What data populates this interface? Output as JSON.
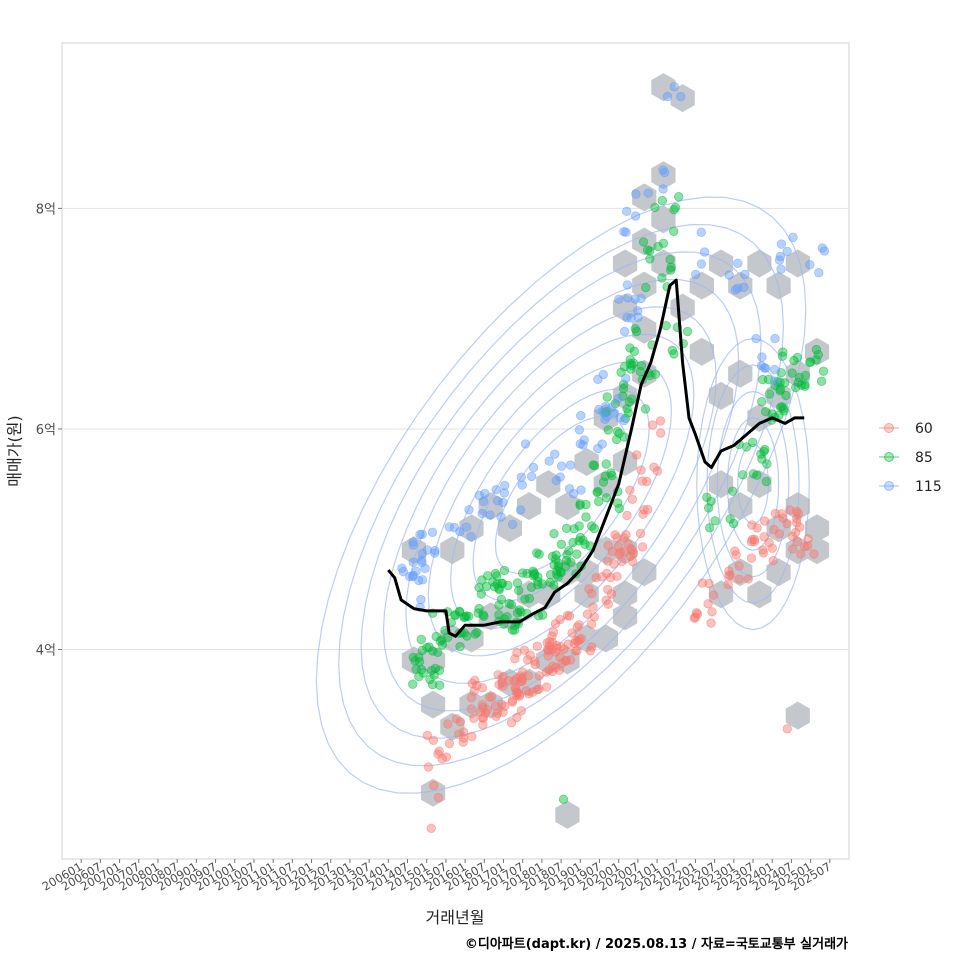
{
  "chart_data": {
    "type": "scatter",
    "title": "",
    "xlabel": "거래년월",
    "ylabel": "매매가(원)",
    "caption": "©디아파트(dapt.kr) / 2025.08.13 / 자료=국토교통부 실거래가",
    "x_ticks": [
      "200601",
      "200607",
      "200701",
      "200707",
      "200801",
      "200807",
      "200901",
      "200907",
      "201001",
      "201007",
      "201101",
      "201107",
      "201201",
      "201207",
      "201301",
      "201307",
      "201401",
      "201407",
      "201501",
      "201507",
      "201601",
      "201607",
      "201701",
      "201707",
      "201801",
      "201807",
      "201901",
      "201907",
      "202001",
      "202007",
      "202101",
      "202107",
      "202201",
      "202207",
      "202301",
      "202307",
      "202401",
      "202407",
      "202501",
      "202507"
    ],
    "x_range_months": [
      -6,
      240
    ],
    "ylim": [
      2.1,
      9.5
    ],
    "y_ticks": [
      {
        "value": 4,
        "label": "4억"
      },
      {
        "value": 6,
        "label": "6억"
      },
      {
        "value": 8,
        "label": "8억"
      }
    ],
    "legend": {
      "placement": "right",
      "entries": [
        {
          "name": "60",
          "color": "#F8766D"
        },
        {
          "name": "85",
          "color": "#00BA38"
        },
        {
          "name": "115",
          "color": "#619CFF"
        }
      ]
    },
    "series": [
      {
        "name": "60",
        "color": "#F8766D",
        "clusters": [
          {
            "month": 112,
            "price": 3.05,
            "count": 6
          },
          {
            "month": 118,
            "price": 3.35,
            "count": 10
          },
          {
            "month": 126,
            "price": 3.5,
            "count": 18
          },
          {
            "month": 134,
            "price": 3.55,
            "count": 22
          },
          {
            "month": 140,
            "price": 3.8,
            "count": 20
          },
          {
            "month": 146,
            "price": 3.85,
            "count": 18
          },
          {
            "month": 150,
            "price": 4.05,
            "count": 16
          },
          {
            "month": 156,
            "price": 4.2,
            "count": 14
          },
          {
            "month": 162,
            "price": 4.45,
            "count": 12
          },
          {
            "month": 168,
            "price": 4.85,
            "count": 14
          },
          {
            "month": 172,
            "price": 5.0,
            "count": 10
          },
          {
            "month": 176,
            "price": 5.45,
            "count": 8
          },
          {
            "month": 178,
            "price": 5.85,
            "count": 6
          },
          {
            "month": 196,
            "price": 4.4,
            "count": 10
          },
          {
            "month": 206,
            "price": 4.75,
            "count": 10
          },
          {
            "month": 214,
            "price": 5.0,
            "count": 14
          },
          {
            "month": 220,
            "price": 5.1,
            "count": 10
          },
          {
            "month": 226,
            "price": 5.05,
            "count": 10
          },
          {
            "month": 224,
            "price": 3.5,
            "count": 1
          },
          {
            "month": 108,
            "price": 2.6,
            "count": 2
          },
          {
            "month": 116,
            "price": 2.8,
            "count": 2
          }
        ]
      },
      {
        "name": "85",
        "color": "#00BA38",
        "clusters": [
          {
            "month": 108,
            "price": 3.9,
            "count": 24
          },
          {
            "month": 114,
            "price": 4.2,
            "count": 10
          },
          {
            "month": 122,
            "price": 4.3,
            "count": 14
          },
          {
            "month": 128,
            "price": 4.5,
            "count": 16
          },
          {
            "month": 134,
            "price": 4.4,
            "count": 18
          },
          {
            "month": 140,
            "price": 4.5,
            "count": 16
          },
          {
            "month": 146,
            "price": 4.75,
            "count": 16
          },
          {
            "month": 152,
            "price": 4.9,
            "count": 16
          },
          {
            "month": 158,
            "price": 5.1,
            "count": 12
          },
          {
            "month": 164,
            "price": 5.5,
            "count": 14
          },
          {
            "month": 168,
            "price": 6.1,
            "count": 14
          },
          {
            "month": 172,
            "price": 6.4,
            "count": 12
          },
          {
            "month": 176,
            "price": 6.7,
            "count": 10
          },
          {
            "month": 180,
            "price": 7.5,
            "count": 12
          },
          {
            "month": 183,
            "price": 7.9,
            "count": 6
          },
          {
            "month": 186,
            "price": 6.9,
            "count": 6
          },
          {
            "month": 150,
            "price": 2.5,
            "count": 1
          },
          {
            "month": 200,
            "price": 5.3,
            "count": 8
          },
          {
            "month": 210,
            "price": 5.7,
            "count": 12
          },
          {
            "month": 216,
            "price": 6.3,
            "count": 16
          },
          {
            "month": 222,
            "price": 6.5,
            "count": 14
          },
          {
            "month": 228,
            "price": 6.6,
            "count": 10
          }
        ]
      },
      {
        "name": "115",
        "color": "#619CFF",
        "clusters": [
          {
            "month": 104,
            "price": 4.85,
            "count": 14
          },
          {
            "month": 104,
            "price": 4.6,
            "count": 6
          },
          {
            "month": 114,
            "price": 5.0,
            "count": 6
          },
          {
            "month": 124,
            "price": 5.2,
            "count": 8
          },
          {
            "month": 134,
            "price": 5.3,
            "count": 8
          },
          {
            "month": 142,
            "price": 5.7,
            "count": 6
          },
          {
            "month": 152,
            "price": 5.6,
            "count": 8
          },
          {
            "month": 160,
            "price": 6.0,
            "count": 10
          },
          {
            "month": 166,
            "price": 6.3,
            "count": 10
          },
          {
            "month": 172,
            "price": 7.1,
            "count": 10
          },
          {
            "month": 174,
            "price": 8.0,
            "count": 6
          },
          {
            "month": 178,
            "price": 8.4,
            "count": 3
          },
          {
            "month": 184,
            "price": 9.1,
            "count": 3
          },
          {
            "month": 196,
            "price": 7.6,
            "count": 4
          },
          {
            "month": 206,
            "price": 7.4,
            "count": 6
          },
          {
            "month": 214,
            "price": 6.6,
            "count": 8
          },
          {
            "month": 222,
            "price": 7.6,
            "count": 6
          },
          {
            "month": 228,
            "price": 7.55,
            "count": 4
          }
        ]
      }
    ],
    "trend_line": {
      "color": "#000000",
      "points": [
        [
          96,
          4.72
        ],
        [
          98,
          4.65
        ],
        [
          100,
          4.45
        ],
        [
          104,
          4.37
        ],
        [
          108,
          4.35
        ],
        [
          114,
          4.35
        ],
        [
          115,
          4.15
        ],
        [
          117,
          4.12
        ],
        [
          120,
          4.22
        ],
        [
          126,
          4.22
        ],
        [
          131,
          4.25
        ],
        [
          137,
          4.25
        ],
        [
          141,
          4.32
        ],
        [
          145,
          4.38
        ],
        [
          148,
          4.52
        ],
        [
          152,
          4.6
        ],
        [
          156,
          4.72
        ],
        [
          160,
          4.9
        ],
        [
          164,
          5.2
        ],
        [
          168,
          5.5
        ],
        [
          172,
          6.0
        ],
        [
          175,
          6.4
        ],
        [
          178,
          6.6
        ],
        [
          181,
          6.9
        ],
        [
          184,
          7.3
        ],
        [
          186,
          7.35
        ],
        [
          188,
          6.6
        ],
        [
          190,
          6.1
        ],
        [
          192,
          5.95
        ],
        [
          195,
          5.7
        ],
        [
          197,
          5.65
        ],
        [
          200,
          5.8
        ],
        [
          204,
          5.85
        ],
        [
          208,
          5.95
        ],
        [
          212,
          6.05
        ],
        [
          216,
          6.1
        ],
        [
          220,
          6.05
        ],
        [
          223,
          6.1
        ],
        [
          226,
          6.1
        ]
      ]
    },
    "hexbin_centers": [
      [
        104,
        3.9
      ],
      [
        110,
        3.9
      ],
      [
        116,
        4.1
      ],
      [
        122,
        4.1
      ],
      [
        128,
        4.3
      ],
      [
        134,
        4.3
      ],
      [
        140,
        4.5
      ],
      [
        146,
        4.5
      ],
      [
        152,
        4.7
      ],
      [
        158,
        4.7
      ],
      [
        164,
        4.9
      ],
      [
        170,
        4.9
      ],
      [
        110,
        3.5
      ],
      [
        116,
        3.3
      ],
      [
        122,
        3.5
      ],
      [
        128,
        3.5
      ],
      [
        134,
        3.7
      ],
      [
        140,
        3.7
      ],
      [
        146,
        3.9
      ],
      [
        152,
        3.9
      ],
      [
        158,
        4.1
      ],
      [
        164,
        4.1
      ],
      [
        170,
        4.3
      ],
      [
        110,
        2.7
      ],
      [
        152,
        2.5
      ],
      [
        104,
        4.9
      ],
      [
        116,
        4.9
      ],
      [
        122,
        5.1
      ],
      [
        128,
        5.3
      ],
      [
        134,
        5.1
      ],
      [
        140,
        5.3
      ],
      [
        146,
        5.5
      ],
      [
        152,
        5.3
      ],
      [
        158,
        5.7
      ],
      [
        164,
        5.5
      ],
      [
        170,
        5.7
      ],
      [
        164,
        6.1
      ],
      [
        170,
        6.3
      ],
      [
        176,
        6.5
      ],
      [
        176,
        6.9
      ],
      [
        170,
        7.1
      ],
      [
        176,
        7.3
      ],
      [
        182,
        7.5
      ],
      [
        176,
        7.7
      ],
      [
        182,
        7.9
      ],
      [
        170,
        7.5
      ],
      [
        176,
        8.1
      ],
      [
        182,
        8.3
      ],
      [
        182,
        9.1
      ],
      [
        188,
        9.0
      ],
      [
        188,
        7.1
      ],
      [
        194,
        7.3
      ],
      [
        200,
        7.5
      ],
      [
        206,
        7.3
      ],
      [
        212,
        7.5
      ],
      [
        218,
        7.3
      ],
      [
        224,
        7.5
      ],
      [
        194,
        6.7
      ],
      [
        200,
        6.3
      ],
      [
        206,
        6.5
      ],
      [
        212,
        6.1
      ],
      [
        218,
        6.3
      ],
      [
        224,
        6.5
      ],
      [
        230,
        6.7
      ],
      [
        200,
        5.5
      ],
      [
        206,
        5.3
      ],
      [
        212,
        5.5
      ],
      [
        218,
        5.1
      ],
      [
        224,
        5.3
      ],
      [
        230,
        4.9
      ],
      [
        200,
        4.5
      ],
      [
        206,
        4.7
      ],
      [
        212,
        4.5
      ],
      [
        218,
        4.7
      ],
      [
        224,
        4.9
      ],
      [
        230,
        5.1
      ],
      [
        224,
        3.4
      ],
      [
        170,
        4.5
      ],
      [
        176,
        4.7
      ],
      [
        158,
        4.5
      ]
    ]
  }
}
